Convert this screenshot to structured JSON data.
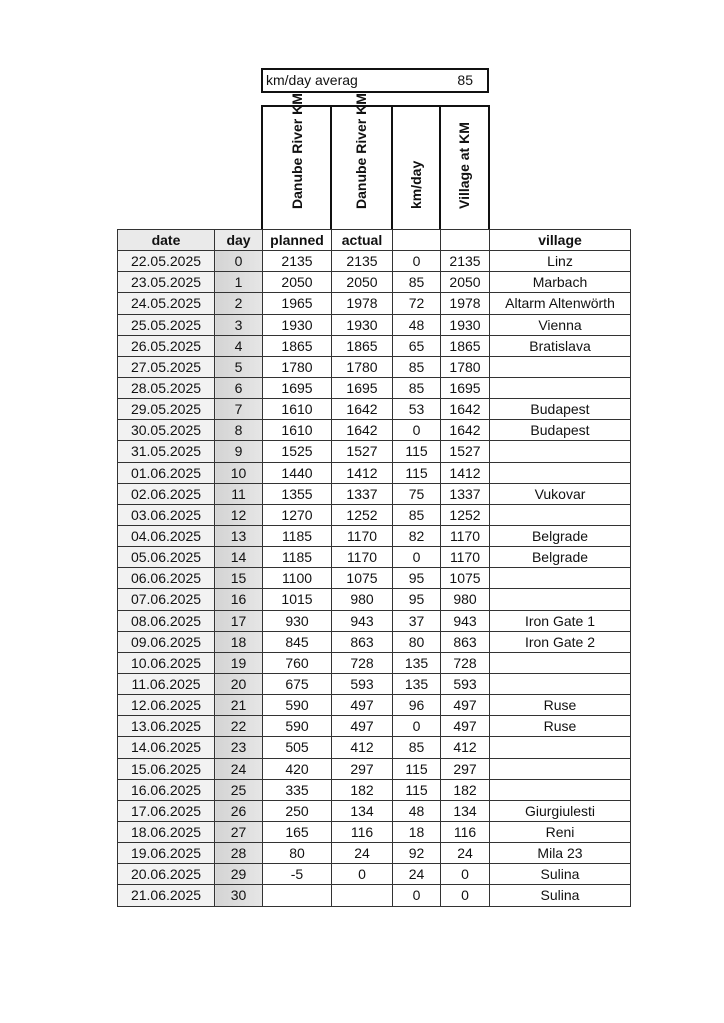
{
  "summary": {
    "label": "km/day averag",
    "value": "85"
  },
  "rotated_headers": [
    "Danube River KM",
    "Danube River KM",
    "km/day",
    "Village at KM"
  ],
  "columns": [
    "date",
    "day",
    "planned",
    "actual",
    "",
    "",
    "village"
  ],
  "rows": [
    [
      "22.05.2025",
      "0",
      "2135",
      "2135",
      "0",
      "2135",
      "Linz"
    ],
    [
      "23.05.2025",
      "1",
      "2050",
      "2050",
      "85",
      "2050",
      "Marbach"
    ],
    [
      "24.05.2025",
      "2",
      "1965",
      "1978",
      "72",
      "1978",
      "Altarm Altenwörth"
    ],
    [
      "25.05.2025",
      "3",
      "1930",
      "1930",
      "48",
      "1930",
      "Vienna"
    ],
    [
      "26.05.2025",
      "4",
      "1865",
      "1865",
      "65",
      "1865",
      "Bratislava"
    ],
    [
      "27.05.2025",
      "5",
      "1780",
      "1780",
      "85",
      "1780",
      ""
    ],
    [
      "28.05.2025",
      "6",
      "1695",
      "1695",
      "85",
      "1695",
      ""
    ],
    [
      "29.05.2025",
      "7",
      "1610",
      "1642",
      "53",
      "1642",
      "Budapest"
    ],
    [
      "30.05.2025",
      "8",
      "1610",
      "1642",
      "0",
      "1642",
      "Budapest"
    ],
    [
      "31.05.2025",
      "9",
      "1525",
      "1527",
      "115",
      "1527",
      ""
    ],
    [
      "01.06.2025",
      "10",
      "1440",
      "1412",
      "115",
      "1412",
      ""
    ],
    [
      "02.06.2025",
      "11",
      "1355",
      "1337",
      "75",
      "1337",
      "Vukovar"
    ],
    [
      "03.06.2025",
      "12",
      "1270",
      "1252",
      "85",
      "1252",
      ""
    ],
    [
      "04.06.2025",
      "13",
      "1185",
      "1170",
      "82",
      "1170",
      "Belgrade"
    ],
    [
      "05.06.2025",
      "14",
      "1185",
      "1170",
      "0",
      "1170",
      "Belgrade"
    ],
    [
      "06.06.2025",
      "15",
      "1100",
      "1075",
      "95",
      "1075",
      ""
    ],
    [
      "07.06.2025",
      "16",
      "1015",
      "980",
      "95",
      "980",
      ""
    ],
    [
      "08.06.2025",
      "17",
      "930",
      "943",
      "37",
      "943",
      "Iron Gate 1"
    ],
    [
      "09.06.2025",
      "18",
      "845",
      "863",
      "80",
      "863",
      "Iron Gate 2"
    ],
    [
      "10.06.2025",
      "19",
      "760",
      "728",
      "135",
      "728",
      ""
    ],
    [
      "11.06.2025",
      "20",
      "675",
      "593",
      "135",
      "593",
      ""
    ],
    [
      "12.06.2025",
      "21",
      "590",
      "497",
      "96",
      "497",
      "Ruse"
    ],
    [
      "13.06.2025",
      "22",
      "590",
      "497",
      "0",
      "497",
      "Ruse"
    ],
    [
      "14.06.2025",
      "23",
      "505",
      "412",
      "85",
      "412",
      ""
    ],
    [
      "15.06.2025",
      "24",
      "420",
      "297",
      "115",
      "297",
      ""
    ],
    [
      "16.06.2025",
      "25",
      "335",
      "182",
      "115",
      "182",
      ""
    ],
    [
      "17.06.2025",
      "26",
      "250",
      "134",
      "48",
      "134",
      "Giurgiulesti"
    ],
    [
      "18.06.2025",
      "27",
      "165",
      "116",
      "18",
      "116",
      "Reni"
    ],
    [
      "19.06.2025",
      "28",
      "80",
      "24",
      "92",
      "24",
      "Mila 23"
    ],
    [
      "20.06.2025",
      "29",
      "-5",
      "0",
      "24",
      "0",
      "Sulina"
    ],
    [
      "21.06.2025",
      "30",
      "",
      "",
      "0",
      "0",
      "Sulina"
    ]
  ]
}
